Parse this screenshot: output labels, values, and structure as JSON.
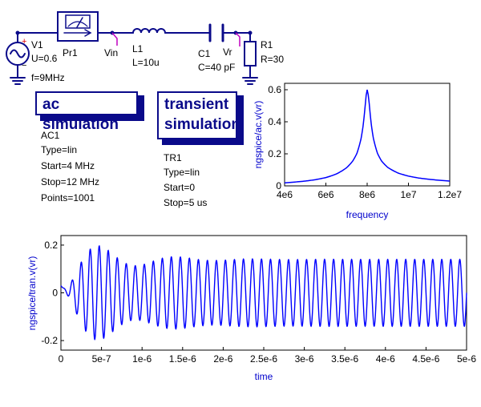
{
  "components": {
    "v1": {
      "name": "V1",
      "u": "U=0.6",
      "f": "f=9MHz",
      "plus": "+",
      "minus": "−"
    },
    "pr1": {
      "name": "Pr1"
    },
    "vin": {
      "name": "Vin"
    },
    "l1": {
      "name": "L1",
      "value": "L=10u"
    },
    "c1": {
      "name": "C1",
      "value": "C=40 pF"
    },
    "vr": {
      "name": "Vr"
    },
    "r1": {
      "name": "R1",
      "value": "R=30"
    }
  },
  "simulations": {
    "ac": {
      "title": "ac simulation",
      "name": "AC1",
      "type": "Type=lin",
      "start": "Start=4 MHz",
      "stop": "Stop=12 MHz",
      "points": "Points=1001"
    },
    "tran": {
      "title_line1": "transient",
      "title_line2": "simulation",
      "name": "TR1",
      "type": "Type=lin",
      "start": "Start=0",
      "stop": "Stop=5 us"
    }
  },
  "colors": {
    "wire": "#0a0a8a",
    "trace": "#0000ff",
    "axis_text": "#0000cc",
    "probe": "#c000c0"
  },
  "chart_data": [
    {
      "type": "line",
      "id": "ac",
      "xlabel": "frequency",
      "ylabel": "ngspice/ac.v(vr)",
      "xlim": [
        4000000,
        12000000
      ],
      "ylim": [
        0,
        0.64
      ],
      "xticks": [
        4000000,
        6000000,
        8000000,
        10000000,
        12000000
      ],
      "xtick_labels": [
        "4e6",
        "6e6",
        "8e6",
        "1e7",
        "1.2e7"
      ],
      "yticks": [
        0,
        0.2,
        0.4,
        0.6
      ],
      "ytick_labels": [
        "0",
        "0.2",
        "0.4",
        "0.6"
      ],
      "grid": false,
      "series": [
        {
          "x": [
            4000000,
            4500000,
            5000000,
            5500000,
            6000000,
            6500000,
            7000000,
            7300000,
            7500000,
            7700000,
            7800000,
            7900000,
            7950000,
            8000000,
            8050000,
            8100000,
            8200000,
            8300000,
            8500000,
            8700000,
            9000000,
            9500000,
            10000000,
            10500000,
            11000000,
            11500000,
            12000000
          ],
          "y": [
            0.019,
            0.024,
            0.03,
            0.039,
            0.052,
            0.074,
            0.113,
            0.155,
            0.202,
            0.292,
            0.372,
            0.495,
            0.564,
            0.6,
            0.57,
            0.514,
            0.384,
            0.298,
            0.203,
            0.155,
            0.115,
            0.08,
            0.061,
            0.049,
            0.041,
            0.035,
            0.03
          ]
        }
      ]
    },
    {
      "type": "line",
      "id": "tran",
      "xlabel": "time",
      "ylabel": "ngspice/tran.v(vr)",
      "xlim": [
        0,
        5e-06
      ],
      "ylim": [
        -0.24,
        0.24
      ],
      "xticks": [
        0,
        5e-07,
        1e-06,
        1.5e-06,
        2e-06,
        2.5e-06,
        3e-06,
        3.5e-06,
        4e-06,
        4.5e-06,
        5e-06
      ],
      "xtick_labels": [
        "0",
        "5e-7",
        "1e-6",
        "1.5e-6",
        "2e-6",
        "2.5e-6",
        "3e-6",
        "3.5e-6",
        "4e-6",
        "4.5e-6",
        "5e-6"
      ],
      "yticks": [
        -0.2,
        0,
        0.2
      ],
      "ytick_labels": [
        "-0.2",
        "0",
        "0.2"
      ],
      "grid": false,
      "signal": {
        "drive_frequency_hz": 9000000,
        "resonant_frequency_hz": 7960000,
        "steady_amplitude": 0.14,
        "peak_amplitude": 0.21,
        "peak_time_s": 4e-07,
        "start_value": 0.03,
        "settled_by_s": 1.8e-06
      }
    }
  ]
}
